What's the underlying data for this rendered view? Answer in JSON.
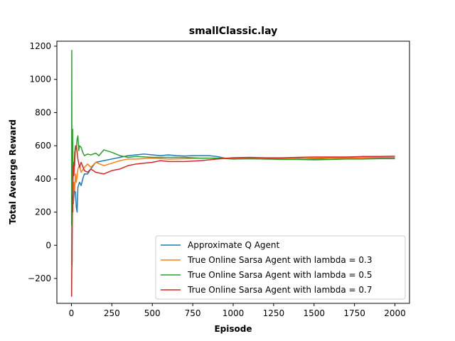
{
  "chart_data": {
    "type": "line",
    "title": "smallClassic.lay",
    "xlabel": "Episode",
    "ylabel": "Total Avearge Reward",
    "xlim": [
      -90,
      2090
    ],
    "ylim": [
      -350,
      1230
    ],
    "xticks": [
      0,
      250,
      500,
      750,
      1000,
      1250,
      1500,
      1750,
      2000
    ],
    "yticks": [
      -200,
      0,
      200,
      400,
      600,
      800,
      1000,
      1200
    ],
    "xtick_labels": [
      "0",
      "250",
      "500",
      "750",
      "1000",
      "1250",
      "1500",
      "1750",
      "2000"
    ],
    "ytick_labels": [
      "−200",
      "0",
      "200",
      "400",
      "600",
      "800",
      "1000",
      "1200"
    ],
    "grid": false,
    "legend_position": "lower-right",
    "series": [
      {
        "name": "Approximate Q Agent",
        "color": "#1f77b4",
        "points": [
          [
            1,
            -120
          ],
          [
            3,
            350
          ],
          [
            5,
            150
          ],
          [
            8,
            300
          ],
          [
            12,
            250
          ],
          [
            18,
            330
          ],
          [
            25,
            320
          ],
          [
            30,
            230
          ],
          [
            35,
            200
          ],
          [
            40,
            350
          ],
          [
            50,
            380
          ],
          [
            60,
            360
          ],
          [
            70,
            400
          ],
          [
            80,
            430
          ],
          [
            100,
            430
          ],
          [
            120,
            460
          ],
          [
            150,
            500
          ],
          [
            200,
            510
          ],
          [
            250,
            520
          ],
          [
            300,
            530
          ],
          [
            350,
            540
          ],
          [
            400,
            545
          ],
          [
            450,
            550
          ],
          [
            500,
            545
          ],
          [
            550,
            540
          ],
          [
            600,
            545
          ],
          [
            650,
            540
          ],
          [
            700,
            538
          ],
          [
            750,
            540
          ],
          [
            800,
            540
          ],
          [
            850,
            540
          ],
          [
            900,
            535
          ],
          [
            950,
            525
          ],
          [
            1000,
            520
          ],
          [
            1100,
            522
          ],
          [
            1200,
            520
          ],
          [
            1300,
            522
          ],
          [
            1400,
            525
          ],
          [
            1500,
            520
          ],
          [
            1600,
            525
          ],
          [
            1700,
            525
          ],
          [
            1800,
            527
          ],
          [
            1900,
            527
          ],
          [
            2000,
            528
          ]
        ]
      },
      {
        "name": "True Online Sarsa Agent with lambda = 0.3",
        "color": "#ff7f0e",
        "points": [
          [
            1,
            -300
          ],
          [
            3,
            0
          ],
          [
            6,
            400
          ],
          [
            10,
            250
          ],
          [
            15,
            380
          ],
          [
            20,
            330
          ],
          [
            25,
            430
          ],
          [
            30,
            380
          ],
          [
            40,
            460
          ],
          [
            50,
            480
          ],
          [
            60,
            440
          ],
          [
            80,
            470
          ],
          [
            100,
            490
          ],
          [
            120,
            470
          ],
          [
            150,
            500
          ],
          [
            200,
            480
          ],
          [
            250,
            495
          ],
          [
            300,
            510
          ],
          [
            350,
            520
          ],
          [
            400,
            520
          ],
          [
            500,
            525
          ],
          [
            600,
            520
          ],
          [
            700,
            522
          ],
          [
            800,
            525
          ],
          [
            900,
            525
          ],
          [
            1000,
            525
          ],
          [
            1100,
            527
          ],
          [
            1200,
            527
          ],
          [
            1300,
            525
          ],
          [
            1400,
            522
          ],
          [
            1500,
            525
          ],
          [
            1600,
            527
          ],
          [
            1700,
            527
          ],
          [
            1800,
            527
          ],
          [
            1900,
            530
          ],
          [
            2000,
            530
          ]
        ]
      },
      {
        "name": "True Online Sarsa Agent with lambda = 0.5",
        "color": "#2ca02c",
        "points": [
          [
            1,
            120
          ],
          [
            2,
            1175
          ],
          [
            3,
            550
          ],
          [
            5,
            400
          ],
          [
            7,
            700
          ],
          [
            10,
            400
          ],
          [
            15,
            500
          ],
          [
            20,
            480
          ],
          [
            25,
            600
          ],
          [
            30,
            580
          ],
          [
            35,
            640
          ],
          [
            40,
            660
          ],
          [
            45,
            570
          ],
          [
            50,
            600
          ],
          [
            60,
            590
          ],
          [
            70,
            560
          ],
          [
            80,
            540
          ],
          [
            100,
            550
          ],
          [
            120,
            545
          ],
          [
            150,
            555
          ],
          [
            170,
            540
          ],
          [
            200,
            575
          ],
          [
            250,
            560
          ],
          [
            300,
            540
          ],
          [
            350,
            530
          ],
          [
            400,
            535
          ],
          [
            500,
            530
          ],
          [
            600,
            530
          ],
          [
            700,
            530
          ],
          [
            800,
            525
          ],
          [
            900,
            525
          ],
          [
            1000,
            520
          ],
          [
            1100,
            522
          ],
          [
            1200,
            520
          ],
          [
            1300,
            517
          ],
          [
            1400,
            517
          ],
          [
            1500,
            515
          ],
          [
            1600,
            517
          ],
          [
            1700,
            520
          ],
          [
            1800,
            520
          ],
          [
            1900,
            522
          ],
          [
            2000,
            522
          ]
        ]
      },
      {
        "name": "True Online Sarsa Agent with lambda = 0.7",
        "color": "#d62728",
        "points": [
          [
            1,
            -310
          ],
          [
            2,
            -150
          ],
          [
            4,
            -100
          ],
          [
            6,
            300
          ],
          [
            8,
            200
          ],
          [
            10,
            480
          ],
          [
            15,
            420
          ],
          [
            20,
            560
          ],
          [
            25,
            590
          ],
          [
            30,
            600
          ],
          [
            35,
            560
          ],
          [
            40,
            520
          ],
          [
            50,
            470
          ],
          [
            60,
            500
          ],
          [
            80,
            450
          ],
          [
            100,
            440
          ],
          [
            120,
            460
          ],
          [
            150,
            440
          ],
          [
            200,
            430
          ],
          [
            250,
            450
          ],
          [
            300,
            460
          ],
          [
            350,
            480
          ],
          [
            400,
            490
          ],
          [
            450,
            495
          ],
          [
            500,
            500
          ],
          [
            550,
            510
          ],
          [
            600,
            505
          ],
          [
            700,
            505
          ],
          [
            800,
            510
          ],
          [
            900,
            520
          ],
          [
            1000,
            528
          ],
          [
            1100,
            530
          ],
          [
            1200,
            527
          ],
          [
            1300,
            527
          ],
          [
            1400,
            530
          ],
          [
            1500,
            532
          ],
          [
            1600,
            532
          ],
          [
            1700,
            532
          ],
          [
            1800,
            535
          ],
          [
            1900,
            535
          ],
          [
            2000,
            537
          ]
        ]
      }
    ]
  }
}
